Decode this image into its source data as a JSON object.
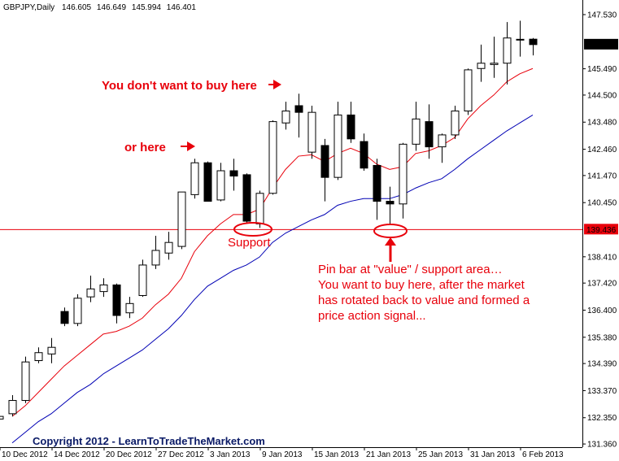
{
  "chart_data": {
    "type": "candlestick",
    "header": {
      "symbol": "GBPJPY,Daily"
    },
    "categories": [
      "10 Dec 2012",
      null,
      null,
      null,
      "14 Dec 2012",
      null,
      null,
      null,
      "20 Dec 2012",
      null,
      null,
      null,
      "27 Dec 2012",
      null,
      null,
      null,
      "3 Jan 2013",
      null,
      null,
      null,
      "9 Jan 2013",
      null,
      null,
      null,
      "15 Jan 2013",
      null,
      null,
      null,
      "21 Jan 2013",
      null,
      null,
      null,
      "25 Jan 2013",
      null,
      null,
      null,
      "31 Jan 2013",
      null,
      null,
      null,
      "6 Feb 2013",
      null
    ],
    "open": [
      132.3,
      132.5,
      133.0,
      134.5,
      134.75,
      136.35,
      135.9,
      136.9,
      137.1,
      137.35,
      136.3,
      136.95,
      138.1,
      138.55,
      138.8,
      140.75,
      141.95,
      140.55,
      141.65,
      141.5,
      139.65,
      140.8,
      143.45,
      144.1,
      142.35,
      142.6,
      141.4,
      143.75,
      142.75,
      141.85,
      140.5,
      140.4,
      142.65,
      143.5,
      142.55,
      143.0,
      143.9,
      145.5,
      145.65,
      145.7,
      146.6,
      146.605
    ],
    "high": [
      132.45,
      133.2,
      134.65,
      135.0,
      135.35,
      136.5,
      137.0,
      137.7,
      137.6,
      137.4,
      136.9,
      138.3,
      139.2,
      139.35,
      140.85,
      142.1,
      142.0,
      141.95,
      142.1,
      141.55,
      140.9,
      143.55,
      144.25,
      144.55,
      144.1,
      142.85,
      144.25,
      144.25,
      143.05,
      142.1,
      141.05,
      142.7,
      144.25,
      144.15,
      143.05,
      144.1,
      145.5,
      146.4,
      146.7,
      147.25,
      147.3,
      146.649
    ],
    "low": [
      132.2,
      132.4,
      132.9,
      134.4,
      134.4,
      135.8,
      135.8,
      136.7,
      136.9,
      135.9,
      136.1,
      136.9,
      137.95,
      138.3,
      138.7,
      140.6,
      140.5,
      140.5,
      140.9,
      139.65,
      139.5,
      140.75,
      143.2,
      142.9,
      142.1,
      140.5,
      141.3,
      142.7,
      141.65,
      139.8,
      139.65,
      139.85,
      142.4,
      142.1,
      141.95,
      142.85,
      143.75,
      145.0,
      145.15,
      144.9,
      145.95,
      145.994
    ],
    "close": [
      132.4,
      133.0,
      134.45,
      134.8,
      135.0,
      135.9,
      136.85,
      137.2,
      137.35,
      136.2,
      136.65,
      138.1,
      138.65,
      138.95,
      140.85,
      141.95,
      140.5,
      141.65,
      141.45,
      139.75,
      140.8,
      143.5,
      143.9,
      143.85,
      143.85,
      141.4,
      143.75,
      142.85,
      141.75,
      140.5,
      140.4,
      142.65,
      143.6,
      142.55,
      143.0,
      143.9,
      145.45,
      145.7,
      145.7,
      146.65,
      146.6,
      146.401
    ],
    "bull_color": "#ffffff",
    "bear_color": "#000000",
    "lines": [
      {
        "color": "#e8000b",
        "values": [
          null,
          132.4,
          132.8,
          133.3,
          133.8,
          134.3,
          134.7,
          135.1,
          135.5,
          135.6,
          135.8,
          136.1,
          136.6,
          137.0,
          137.6,
          138.6,
          139.2,
          139.65,
          140.0,
          140.0,
          140.2,
          141.0,
          141.7,
          142.2,
          142.25,
          142.0,
          142.3,
          142.5,
          142.3,
          141.9,
          141.7,
          141.8,
          142.3,
          142.4,
          142.6,
          142.9,
          143.6,
          144.1,
          144.5,
          145.0,
          145.3,
          145.5
        ]
      },
      {
        "color": "#0000b4",
        "values": [
          null,
          131.4,
          131.8,
          132.2,
          132.5,
          132.9,
          133.3,
          133.6,
          134.0,
          134.3,
          134.6,
          134.9,
          135.3,
          135.7,
          136.2,
          136.8,
          137.3,
          137.6,
          137.9,
          138.1,
          138.4,
          138.95,
          139.3,
          139.55,
          139.8,
          140.0,
          140.35,
          140.5,
          140.6,
          140.6,
          140.6,
          140.75,
          141.0,
          141.2,
          141.35,
          141.7,
          142.1,
          142.45,
          142.8,
          143.15,
          143.45,
          143.75
        ]
      }
    ],
    "hline": {
      "value": 139.436,
      "color": "#e8000b"
    },
    "ylim": [
      131.24,
      148.08
    ],
    "yticks": [
      {
        "value": 147.53,
        "label": "147.530"
      },
      {
        "value": 145.49,
        "label": "145.490"
      },
      {
        "value": 144.5,
        "label": "144.500"
      },
      {
        "value": 143.48,
        "label": "143.480"
      },
      {
        "value": 142.46,
        "label": "142.460"
      },
      {
        "value": 141.47,
        "label": "141.470"
      },
      {
        "value": 140.45,
        "label": "140.450"
      },
      {
        "value": 138.41,
        "label": "138.410"
      },
      {
        "value": 137.42,
        "label": "137.420"
      },
      {
        "value": 136.4,
        "label": "136.400"
      },
      {
        "value": 135.38,
        "label": "135.380"
      },
      {
        "value": 134.39,
        "label": "134.390"
      },
      {
        "value": 133.37,
        "label": "133.370"
      },
      {
        "value": 132.35,
        "label": "132.350"
      },
      {
        "value": 131.36,
        "label": "131.360"
      }
    ],
    "annotations": {
      "no_buy": "You don't want to buy here",
      "or_here": "or here",
      "support": "Support",
      "pin_bar": [
        "Pin bar at \"value\" / support area…",
        "You want to buy here, after the market",
        "has rotated back to value and formed a",
        "price action signal..."
      ],
      "copyright": "Copyright 2012 - LearnToTradeTheMarket.com"
    }
  }
}
